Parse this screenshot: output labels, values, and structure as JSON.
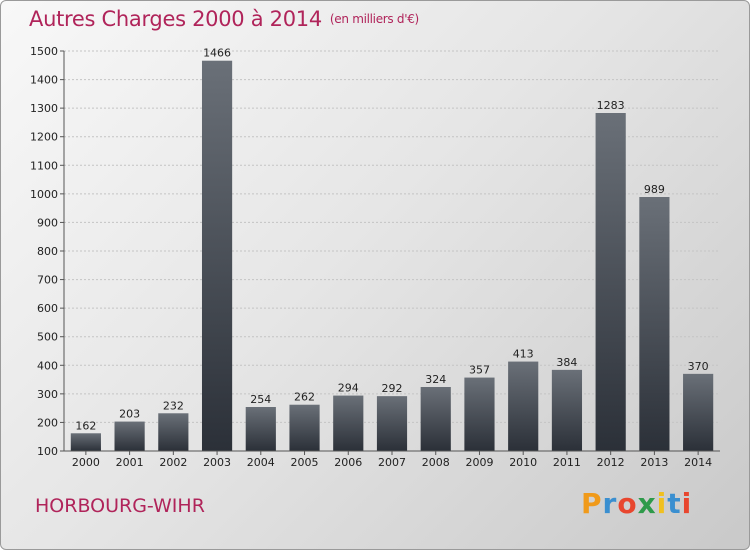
{
  "title": "Autres Charges 2000 à 2014",
  "title_unit": "(en milliers d'€)",
  "location": "HORBOURG-WIHR",
  "logo": {
    "letters": [
      "P",
      "r",
      "o",
      "x",
      "i",
      "t",
      "i"
    ],
    "colors": [
      "#f09a1a",
      "#3a8fd0",
      "#e8462e",
      "#2e9a4a",
      "#f0c020",
      "#3a8fd0",
      "#e8462e"
    ]
  },
  "chart_data": {
    "type": "bar",
    "title": "Autres Charges 2000 à 2014",
    "categories": [
      "2000",
      "2001",
      "2002",
      "2003",
      "2004",
      "2005",
      "2006",
      "2007",
      "2008",
      "2009",
      "2010",
      "2011",
      "2012",
      "2013",
      "2014"
    ],
    "values": [
      162,
      203,
      232,
      1466,
      254,
      262,
      294,
      292,
      324,
      357,
      413,
      384,
      1283,
      989,
      370
    ],
    "ylim": [
      100,
      1500
    ],
    "yticks": [
      100,
      200,
      300,
      400,
      500,
      600,
      700,
      800,
      900,
      1000,
      1100,
      1200,
      1300,
      1400,
      1500
    ],
    "grid": true,
    "colors": {
      "bar_top": "#6a7078",
      "bar_bottom": "#2b3038",
      "grid": "#c4c4c4",
      "axis": "#555555"
    }
  }
}
